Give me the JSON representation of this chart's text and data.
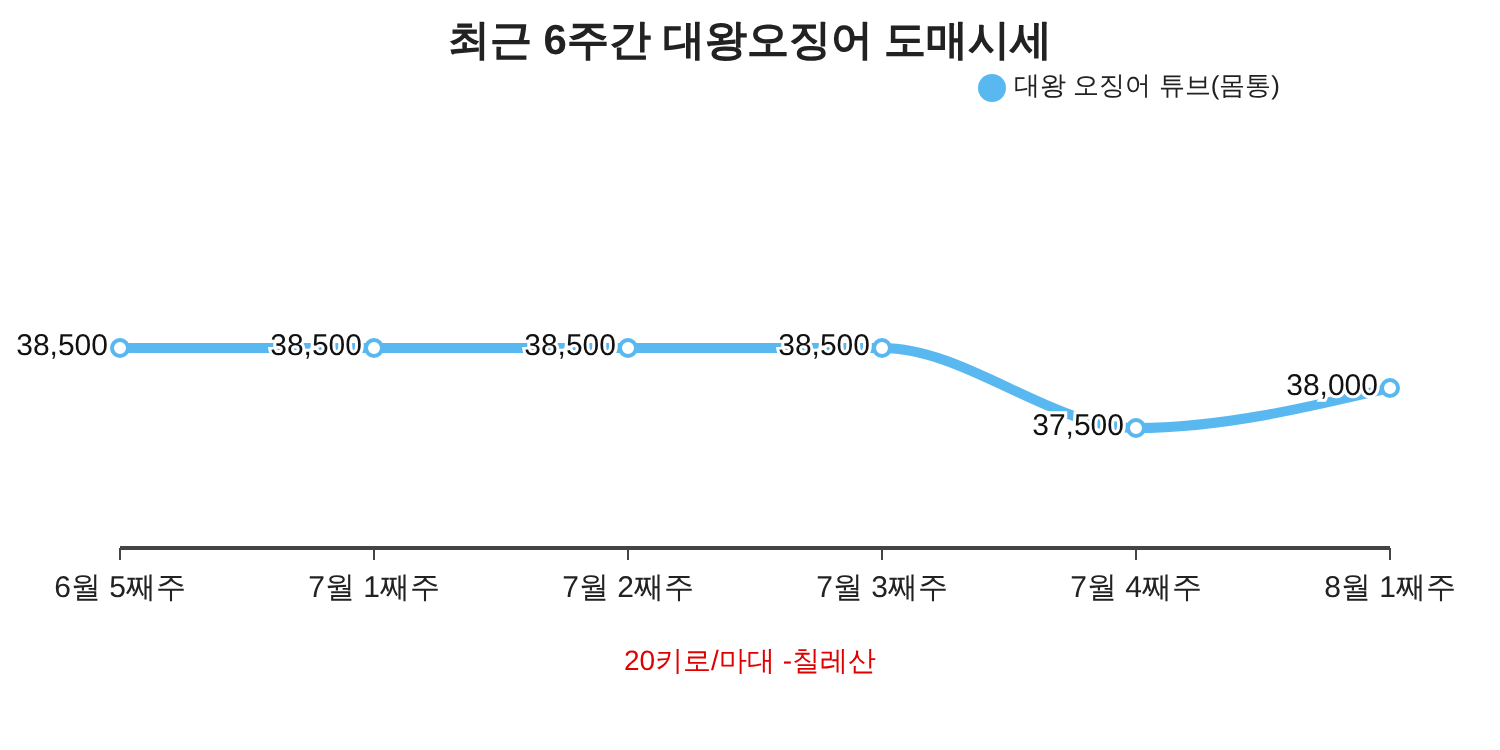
{
  "chart_data": {
    "type": "line",
    "title": "최근 6주간 대왕오징어 도매시세",
    "categories": [
      "6월 5째주",
      "7월 1째주",
      "7월 2째주",
      "7월 3째주",
      "7월 4째주",
      "8월 1째주"
    ],
    "series": [
      {
        "name": "대왕 오징어 튜브(몸통)",
        "color": "#5ab8f0",
        "values": [
          38500,
          38500,
          38500,
          38500,
          37500,
          38000
        ],
        "value_labels": [
          "38,500",
          "38,500",
          "38,500",
          "38,500",
          "37,500",
          "38,000"
        ]
      }
    ],
    "tick_labels": "x",
    "legend": "top right",
    "marker": "circle",
    "line_style": "solid",
    "annotations": [
      "20키로/마대 -칠레산"
    ]
  }
}
